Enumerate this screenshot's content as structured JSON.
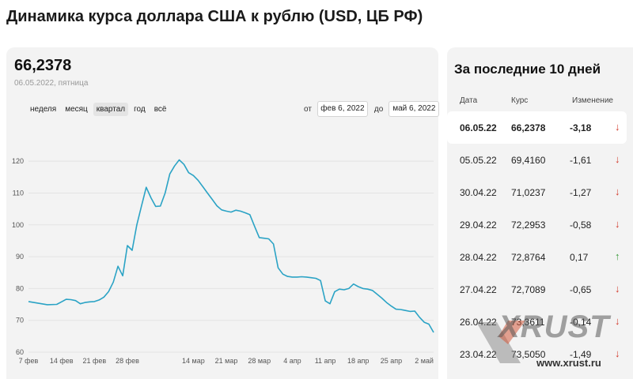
{
  "page": {
    "title": "Динамика курса доллара США к рублю (USD, ЦБ РФ)"
  },
  "summary": {
    "rate": "66,2378",
    "date": "06.05.2022, пятница"
  },
  "tabs": [
    {
      "label": "неделя",
      "active": false
    },
    {
      "label": "месяц",
      "active": false
    },
    {
      "label": "квартал",
      "active": true
    },
    {
      "label": "год",
      "active": false
    },
    {
      "label": "всё",
      "active": false
    }
  ],
  "range": {
    "from_label": "от",
    "from_value": "фев 6, 2022",
    "to_label": "до",
    "to_value": "май 6, 2022"
  },
  "colors": {
    "line": "#2ba3c5",
    "up": "#3a9b3a",
    "down": "#d23a2c",
    "grid": "#e3e3e3"
  },
  "table": {
    "title": "За последние 10 дней",
    "headers": [
      "Дата",
      "Курс",
      "Изменение"
    ],
    "rows": [
      {
        "date": "06.05.22",
        "rate": "66,2378",
        "change": "-3,18",
        "dir": "down"
      },
      {
        "date": "05.05.22",
        "rate": "69,4160",
        "change": "-1,61",
        "dir": "down"
      },
      {
        "date": "30.04.22",
        "rate": "71,0237",
        "change": "-1,27",
        "dir": "down"
      },
      {
        "date": "29.04.22",
        "rate": "72,2953",
        "change": "-0,58",
        "dir": "down"
      },
      {
        "date": "28.04.22",
        "rate": "72,8764",
        "change": "0,17",
        "dir": "up"
      },
      {
        "date": "27.04.22",
        "rate": "72,7089",
        "change": "-0,65",
        "dir": "down"
      },
      {
        "date": "26.04.22",
        "rate": "73,3611",
        "change": "-0,14",
        "dir": "down"
      },
      {
        "date": "23.04.22",
        "rate": "73,5050",
        "change": "-1,49",
        "dir": "down"
      }
    ]
  },
  "watermark": {
    "logo": "XRUST",
    "url": "www.xrust.ru"
  },
  "chart_data": {
    "type": "line",
    "ylim": [
      60,
      125
    ],
    "yticks": [
      60,
      70,
      80,
      90,
      100,
      110,
      120
    ],
    "grid": true,
    "xticks": [
      {
        "label": "7 фев",
        "day": 0
      },
      {
        "label": "14 фев",
        "day": 7
      },
      {
        "label": "21 фев",
        "day": 14
      },
      {
        "label": "28 фев",
        "day": 21
      },
      {
        "label": "14 мар",
        "day": 35
      },
      {
        "label": "21 мар",
        "day": 42
      },
      {
        "label": "28 мар",
        "day": 49
      },
      {
        "label": "4 апр",
        "day": 56
      },
      {
        "label": "11 апр",
        "day": 63
      },
      {
        "label": "18 апр",
        "day": 70
      },
      {
        "label": "25 апр",
        "day": 77
      },
      {
        "label": "2 май",
        "day": 84
      }
    ],
    "series": [
      {
        "x": [
          0,
          2,
          4,
          6,
          7,
          8,
          9,
          10,
          11,
          12,
          13,
          14,
          15,
          16,
          17,
          18,
          19,
          20,
          21,
          22,
          23,
          24,
          25,
          26,
          27,
          28,
          29,
          30,
          31,
          32,
          33,
          34,
          35,
          36,
          37,
          38,
          39,
          40,
          41,
          42,
          43,
          44,
          45,
          46,
          47,
          48,
          49,
          50,
          51,
          52,
          53,
          54,
          55,
          56,
          57,
          58,
          59,
          60,
          61,
          62,
          63,
          64,
          65,
          66,
          67,
          68,
          69,
          70,
          71,
          72,
          73,
          74,
          75,
          76,
          77,
          78,
          79,
          80,
          81,
          82,
          83,
          84,
          85,
          86
        ],
        "y": [
          75.9,
          75.4,
          74.9,
          75.0,
          75.8,
          76.6,
          76.5,
          76.2,
          75.2,
          75.6,
          75.8,
          75.9,
          76.4,
          77.3,
          79.0,
          82.0,
          87.0,
          84.0,
          93.5,
          92.0,
          100.0,
          106.0,
          111.8,
          108.5,
          105.8,
          105.9,
          110.0,
          116.0,
          118.5,
          120.4,
          119.0,
          116.4,
          115.5,
          114.0,
          112.0,
          110.0,
          108.0,
          106.0,
          104.7,
          104.3,
          104.0,
          104.6,
          104.3,
          103.8,
          103.2,
          99.5,
          96.0,
          95.8,
          95.6,
          94.0,
          86.5,
          84.5,
          83.8,
          83.6,
          83.6,
          83.7,
          83.6,
          83.4,
          83.2,
          82.5,
          76.1,
          75.2,
          79.0,
          79.8,
          79.6,
          80.0,
          81.4,
          80.6,
          80.0,
          79.8,
          79.4,
          78.2,
          77.0,
          75.6,
          74.5,
          73.5,
          73.4,
          73.1,
          72.8,
          72.9,
          71.0,
          69.4,
          68.8,
          66.2
        ]
      }
    ]
  }
}
